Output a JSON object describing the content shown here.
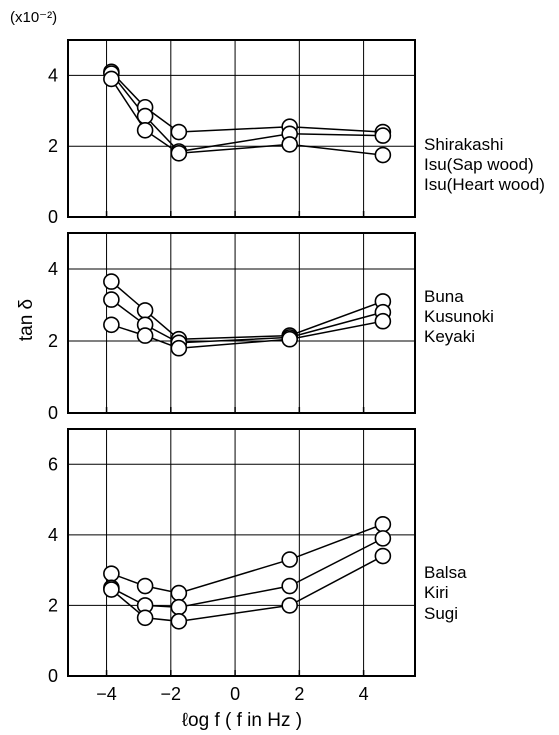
{
  "chart_data": {
    "type": "line",
    "scale_note": "(x10⁻²)",
    "ylabel": "tan δ",
    "xlabel": "ℓog f  ( f in Hz )",
    "x_tick_labels": [
      "−4",
      "−2",
      "0",
      "2",
      "4"
    ],
    "x_ticks": [
      -4,
      -2,
      0,
      2,
      4
    ],
    "xlim": [
      -5.2,
      5.6
    ],
    "grid": true,
    "panels": [
      {
        "ylim": [
          0,
          5
        ],
        "y_ticks": [
          0,
          2,
          4
        ],
        "y_tick_labels": [
          "0",
          "2",
          "4"
        ],
        "series": [
          {
            "name": "Shirakashi",
            "x": [
              -3.85,
              -2.8,
              -1.75,
              1.7,
              4.6
            ],
            "y": [
              4.1,
              3.1,
              2.4,
              2.55,
              2.4
            ]
          },
          {
            "name": "Isu(Sap wood)",
            "x": [
              -3.85,
              -2.8,
              -1.75,
              1.7,
              4.6
            ],
            "y": [
              4.05,
              2.85,
              1.85,
              2.35,
              2.3
            ]
          },
          {
            "name": "Isu(Heart wood)",
            "x": [
              -3.85,
              -2.8,
              -1.75,
              1.7,
              4.6
            ],
            "y": [
              3.9,
              2.45,
              1.8,
              2.05,
              1.75
            ]
          }
        ]
      },
      {
        "ylim": [
          0,
          5
        ],
        "y_ticks": [
          0,
          2,
          4
        ],
        "y_tick_labels": [
          "0",
          "2",
          "4"
        ],
        "series": [
          {
            "name": "Buna",
            "x": [
              -3.85,
              -2.8,
              -1.75,
              1.7,
              4.6
            ],
            "y": [
              3.65,
              2.85,
              2.05,
              2.15,
              3.1
            ]
          },
          {
            "name": "Kusunoki",
            "x": [
              -3.85,
              -2.8,
              -1.75,
              1.7,
              4.6
            ],
            "y": [
              3.15,
              2.45,
              1.95,
              2.1,
              2.8
            ]
          },
          {
            "name": "Keyaki",
            "x": [
              -3.85,
              -2.8,
              -1.75,
              1.7,
              4.6
            ],
            "y": [
              2.45,
              2.15,
              1.8,
              2.05,
              2.55
            ]
          }
        ]
      },
      {
        "ylim": [
          0,
          7
        ],
        "y_ticks": [
          0,
          2,
          4,
          6
        ],
        "y_tick_labels": [
          "0",
          "2",
          "4",
          "6"
        ],
        "series": [
          {
            "name": "Balsa",
            "x": [
              -3.85,
              -2.8,
              -1.75,
              1.7,
              4.6
            ],
            "y": [
              2.9,
              2.55,
              2.35,
              3.3,
              4.3
            ]
          },
          {
            "name": "Kiri",
            "x": [
              -3.85,
              -2.8,
              -1.75,
              1.7,
              4.6
            ],
            "y": [
              2.5,
              2.0,
              1.95,
              2.55,
              3.9
            ]
          },
          {
            "name": "Sugi",
            "x": [
              -3.85,
              -2.8,
              -1.75,
              1.7,
              4.6
            ],
            "y": [
              2.45,
              1.65,
              1.55,
              2.0,
              3.4
            ]
          }
        ]
      }
    ]
  }
}
